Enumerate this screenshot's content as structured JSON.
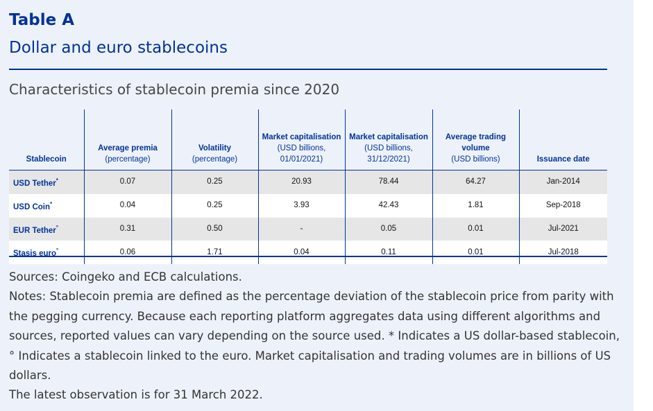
{
  "header": {
    "table_label": "Table A",
    "title": "Dollar and euro stablecoins",
    "subtitle": "Characteristics of stablecoin premia since 2020"
  },
  "table": {
    "columns": [
      {
        "main": "Stablecoin",
        "sub": ""
      },
      {
        "main": "Average premia",
        "sub": "(percentage)"
      },
      {
        "main": "Volatility",
        "sub": "(percentage)"
      },
      {
        "main": "Market capitalisation",
        "sub": "(USD billions, 01/01/2021)"
      },
      {
        "main": "Market capitalisation",
        "sub": "(USD billions, 31/12/2021)"
      },
      {
        "main": "Average trading volume",
        "sub": "(USD billions)"
      },
      {
        "main": "Issuance date",
        "sub": ""
      }
    ],
    "rows": [
      {
        "name": "USD Tether",
        "mark": "*",
        "cells": [
          "0.07",
          "0.25",
          "20.93",
          "78.44",
          "64.27",
          "Jan-2014"
        ]
      },
      {
        "name": "USD Coin",
        "mark": "*",
        "cells": [
          "0.04",
          "0.25",
          "3.93",
          "42.43",
          "1.81",
          "Sep-2018"
        ]
      },
      {
        "name": "EUR Tether",
        "mark": "°",
        "cells": [
          "0.31",
          "0.50",
          "-",
          "0.05",
          "0.01",
          "Jul-2021"
        ]
      },
      {
        "name": "Stasis euro",
        "mark": "°",
        "cells": [
          "0.06",
          "1.71",
          "0.04",
          "0.11",
          "0.01",
          "Jul-2018"
        ]
      }
    ]
  },
  "notes": {
    "sources": "Sources: Coingeko and ECB calculations.",
    "notes": "Notes: Stablecoin premia are defined as the percentage deviation of the stablecoin price from parity with the pegging currency. Because each reporting platform aggregates data using different algorithms and sources, reported values can vary depending on the source used. * Indicates a US dollar-based stablecoin, ° Indicates a stablecoin linked to the euro. Market capitalisation and trading volumes are in billions of US dollars.",
    "latest": "The latest observation is for 31 March 2022."
  }
}
